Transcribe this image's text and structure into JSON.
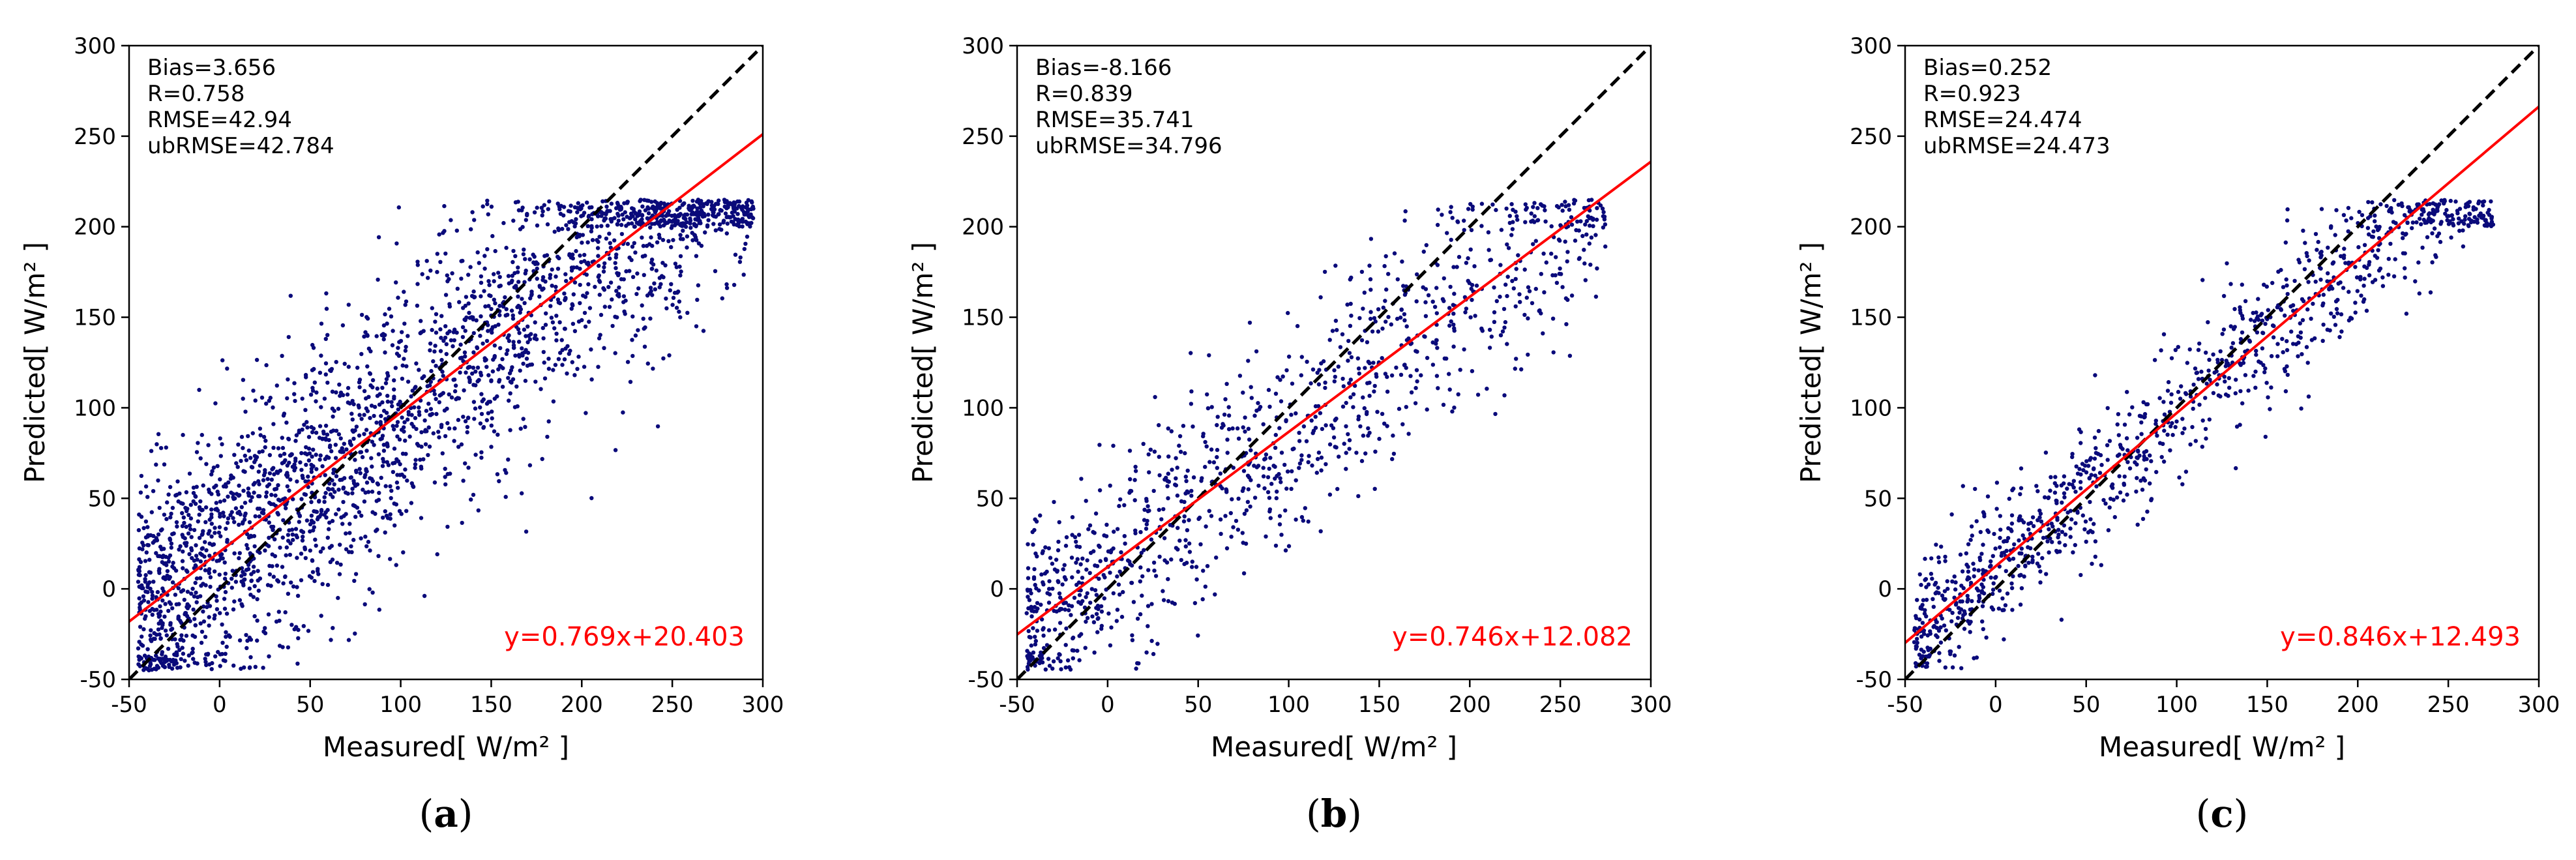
{
  "chart_data": [
    {
      "type": "scatter",
      "panel_label": "(a)",
      "xlabel": "Measured[  W/m²  ]",
      "ylabel": "Predicted[  W/m²  ]",
      "xlim": [
        -50,
        300
      ],
      "ylim": [
        -50,
        300
      ],
      "xticks": [
        -50,
        0,
        50,
        100,
        150,
        200,
        250,
        300
      ],
      "yticks": [
        -50,
        0,
        50,
        100,
        150,
        200,
        250,
        300
      ],
      "stats": [
        "Bias=3.656",
        "R=0.758",
        "RMSE=42.94",
        "ubRMSE=42.784"
      ],
      "fit": {
        "slope": 0.769,
        "intercept": 20.403,
        "label": "y=0.769x+20.403",
        "color": "#ff0000"
      },
      "identity_line": {
        "style": "dashed",
        "color": "#000000"
      },
      "point_color": "#0a0a7a",
      "n_points": 2600,
      "x_range_data": [
        -45,
        295
      ],
      "noise_sd": 38
    },
    {
      "type": "scatter",
      "panel_label": "(b)",
      "xlabel": "Measured[  W/m²  ]",
      "ylabel": "Predicted[  W/m²  ]",
      "xlim": [
        -50,
        300
      ],
      "ylim": [
        -50,
        300
      ],
      "xticks": [
        -50,
        0,
        50,
        100,
        150,
        200,
        250,
        300
      ],
      "yticks": [
        -50,
        0,
        50,
        100,
        150,
        200,
        250,
        300
      ],
      "stats": [
        "Bias=-8.166",
        "R=0.839",
        "RMSE=35.741",
        "ubRMSE=34.796"
      ],
      "fit": {
        "slope": 0.746,
        "intercept": 12.082,
        "label": "y=0.746x+12.082",
        "color": "#ff0000"
      },
      "identity_line": {
        "style": "dashed",
        "color": "#000000"
      },
      "point_color": "#0a0a7a",
      "n_points": 1100,
      "x_range_data": [
        -45,
        275
      ],
      "noise_sd": 30
    },
    {
      "type": "scatter",
      "panel_label": "(c)",
      "xlabel": "Measured[  W/m²  ]",
      "ylabel": "Predicted[  W/m²  ]",
      "xlim": [
        -50,
        300
      ],
      "ylim": [
        -50,
        300
      ],
      "xticks": [
        -50,
        0,
        50,
        100,
        150,
        200,
        250,
        300
      ],
      "yticks": [
        -50,
        0,
        50,
        100,
        150,
        200,
        250,
        300
      ],
      "stats": [
        "Bias=0.252",
        "R=0.923",
        "RMSE=24.474",
        "ubRMSE=24.473"
      ],
      "fit": {
        "slope": 0.846,
        "intercept": 12.493,
        "label": "y=0.846x+12.493",
        "color": "#ff0000"
      },
      "identity_line": {
        "style": "dashed",
        "color": "#000000"
      },
      "point_color": "#0a0a7a",
      "n_points": 1100,
      "x_range_data": [
        -45,
        275
      ],
      "noise_sd": 20
    }
  ]
}
